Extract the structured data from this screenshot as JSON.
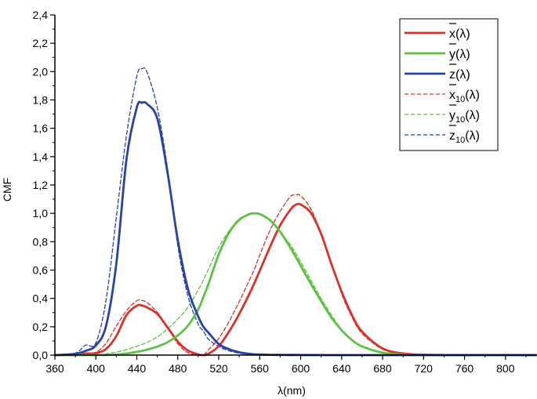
{
  "chart_data": {
    "type": "line",
    "xlabel": "λ(nm)",
    "ylabel": "CMF",
    "xlim": [
      360,
      830
    ],
    "ylim": [
      0,
      2.4
    ],
    "x_ticks": [
      360,
      400,
      440,
      480,
      520,
      560,
      600,
      640,
      680,
      720,
      760,
      800
    ],
    "x_tick_labels": [
      "360",
      "400",
      "440",
      "480",
      "520",
      "560",
      "600",
      "640",
      "680",
      "720",
      "760",
      "800"
    ],
    "y_ticks": [
      0,
      0.2,
      0.4,
      0.6,
      0.8,
      1.0,
      1.2,
      1.4,
      1.6,
      1.8,
      2.0,
      2.2,
      2.4
    ],
    "y_tick_labels": [
      "0,0",
      "0,2",
      "0,4",
      "0,6",
      "0,8",
      "1,0",
      "1,2",
      "1,4",
      "1,6",
      "1,8",
      "2,0",
      "2,2",
      "2,4"
    ],
    "grid": false,
    "legend_position": "top-right",
    "x": [
      360,
      380,
      390,
      400,
      410,
      420,
      430,
      440,
      445,
      450,
      460,
      470,
      480,
      490,
      500,
      505,
      510,
      520,
      530,
      540,
      550,
      555,
      560,
      570,
      580,
      590,
      595,
      600,
      610,
      620,
      630,
      640,
      650,
      660,
      680,
      700,
      720,
      760,
      830
    ],
    "series": [
      {
        "id": "x2",
        "color": "#d93327",
        "dash": "solid",
        "values": [
          0,
          0.002,
          0.01,
          0.0143,
          0.0435,
          0.1344,
          0.2839,
          0.3483,
          0.35,
          0.3362,
          0.2908,
          0.1954,
          0.0956,
          0.032,
          0.0049,
          0,
          0.0093,
          0.0633,
          0.1655,
          0.2904,
          0.4334,
          0.512,
          0.5945,
          0.7621,
          0.9163,
          1.0263,
          1.06,
          1.0622,
          1.0026,
          0.8544,
          0.6424,
          0.4479,
          0.2835,
          0.1649,
          0.0468,
          0.0114,
          0.0029,
          0.0002,
          0
        ]
      },
      {
        "id": "y2",
        "color": "#5cc241",
        "dash": "solid",
        "values": [
          0,
          0,
          0,
          0.0004,
          0.0012,
          0.004,
          0.0116,
          0.023,
          0.03,
          0.038,
          0.06,
          0.091,
          0.139,
          0.208,
          0.323,
          0.41,
          0.503,
          0.71,
          0.862,
          0.954,
          0.995,
          1.0,
          0.995,
          0.952,
          0.87,
          0.757,
          0.695,
          0.631,
          0.503,
          0.381,
          0.265,
          0.175,
          0.107,
          0.061,
          0.017,
          0.0041,
          0.001,
          0.0001,
          0
        ]
      },
      {
        "id": "z2",
        "color": "#2a42a6",
        "dash": "solid",
        "values": [
          0,
          0.009,
          0.03,
          0.0679,
          0.2074,
          0.6456,
          1.3856,
          1.7471,
          1.78,
          1.7721,
          1.6692,
          1.2876,
          0.813,
          0.4652,
          0.272,
          0.2,
          0.1582,
          0.0782,
          0.0422,
          0.0203,
          0.0087,
          0.0057,
          0.0039,
          0.0021,
          0.0017,
          0.0011,
          0.001,
          0.0008,
          0.0003,
          0.0002,
          0,
          0,
          0,
          0,
          0,
          0,
          0,
          0,
          0
        ]
      },
      {
        "id": "x10",
        "color": "#d93327",
        "dash": "dashed",
        "values": [
          0,
          0.003,
          0.015,
          0.0191,
          0.0847,
          0.2045,
          0.3147,
          0.3837,
          0.385,
          0.3707,
          0.3023,
          0.1956,
          0.0805,
          0.0162,
          0.0038,
          0.0,
          0.0375,
          0.1177,
          0.2365,
          0.3768,
          0.5298,
          0.61,
          0.7052,
          0.8787,
          1.0142,
          1.1185,
          1.13,
          1.124,
          1.0305,
          0.8563,
          0.6475,
          0.4316,
          0.2683,
          0.1526,
          0.0409,
          0.0096,
          0.0022,
          0.0001,
          0
        ]
      },
      {
        "id": "y10",
        "color": "#5cc241",
        "dash": "dashed",
        "values": [
          0,
          0,
          0.0002,
          0.002,
          0.0088,
          0.0214,
          0.0387,
          0.0621,
          0.075,
          0.0895,
          0.1282,
          0.1852,
          0.2536,
          0.3391,
          0.4608,
          0.53,
          0.6067,
          0.7618,
          0.8752,
          0.962,
          0.9918,
          0.997,
          0.9973,
          0.9556,
          0.8689,
          0.7774,
          0.72,
          0.6583,
          0.528,
          0.3981,
          0.2835,
          0.1798,
          0.1076,
          0.0603,
          0.0159,
          0.0037,
          0.0009,
          0.0001,
          0
        ]
      },
      {
        "id": "z10",
        "color": "#2a42a6",
        "dash": "dashed",
        "values": [
          0,
          0.0139,
          0.07,
          0.086,
          0.3894,
          0.9725,
          1.5535,
          1.9673,
          2.02,
          1.9948,
          1.7454,
          1.3176,
          0.7721,
          0.4153,
          0.2185,
          0.17,
          0.112,
          0.0607,
          0.0305,
          0.0137,
          0.004,
          0.0018,
          0,
          0,
          0,
          0,
          0,
          0,
          0,
          0,
          0,
          0,
          0,
          0,
          0,
          0,
          0,
          0,
          0
        ]
      }
    ],
    "legend": [
      {
        "base": "x",
        "sub": "",
        "suffix": "(λ)",
        "color": "#d93327",
        "dash": "solid"
      },
      {
        "base": "y",
        "sub": "",
        "suffix": "(λ)",
        "color": "#5cc241",
        "dash": "solid"
      },
      {
        "base": "z",
        "sub": "",
        "suffix": "(λ)",
        "color": "#2a42a6",
        "dash": "solid"
      },
      {
        "base": "x",
        "sub": "10",
        "suffix": "(λ)",
        "color": "#d93327",
        "dash": "dashed"
      },
      {
        "base": "y",
        "sub": "10",
        "suffix": "(λ)",
        "color": "#5cc241",
        "dash": "dashed"
      },
      {
        "base": "z",
        "sub": "10",
        "suffix": "(λ)",
        "color": "#2a42a6",
        "dash": "dashed"
      }
    ]
  }
}
